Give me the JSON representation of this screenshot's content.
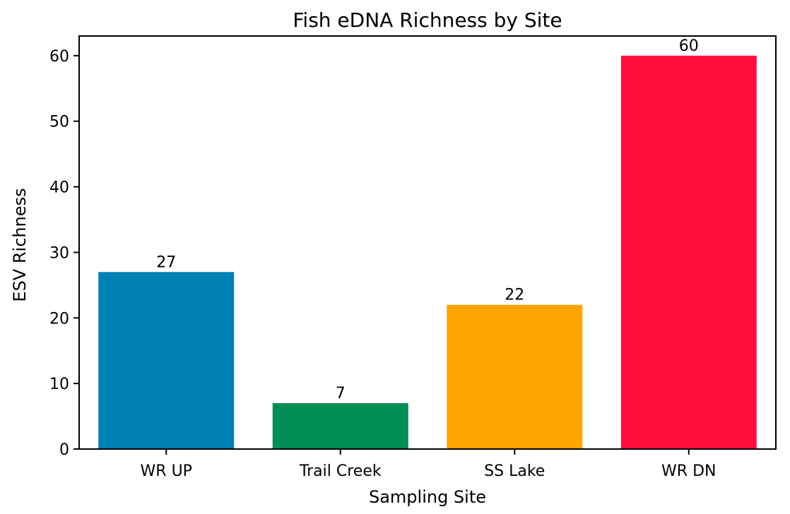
{
  "chart_data": {
    "type": "bar",
    "title": "Fish eDNA Richness by Site",
    "xlabel": "Sampling Site",
    "ylabel": "ESV Richness",
    "categories": [
      "WR UP",
      "Trail Creek",
      "SS Lake",
      "WR DN"
    ],
    "values": [
      27,
      7,
      22,
      60
    ],
    "data_labels": [
      "27",
      "7",
      "22",
      "60"
    ],
    "colors": [
      "#0081B6",
      "#008E56",
      "#FFA500",
      "#FF0E3B"
    ],
    "ylim": [
      0,
      63
    ],
    "yticks": [
      0,
      10,
      20,
      30,
      40,
      50,
      60
    ],
    "ytick_labels": [
      "0",
      "10",
      "20",
      "30",
      "40",
      "50",
      "60"
    ],
    "grid": false,
    "legend": "none"
  }
}
